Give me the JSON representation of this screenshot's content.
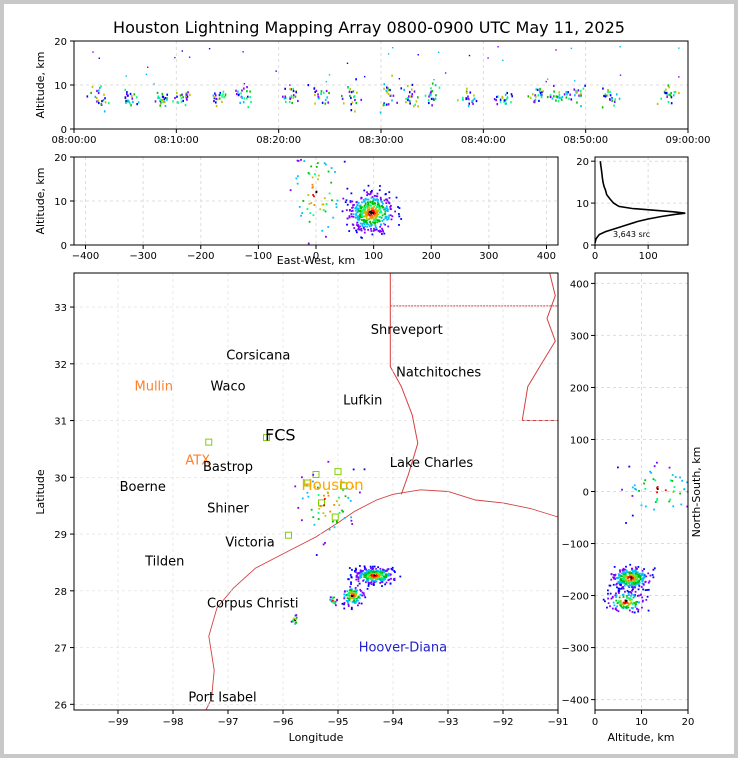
{
  "title": "Houston Lightning Mapping Array 0800-0900 UTC May 11, 2025",
  "colors": {
    "frame": "#c8c8c8",
    "grid": "#dddddd",
    "border": "#d44040",
    "county": "#c8c8c8",
    "coast": "#d44040",
    "city_label": "#000000",
    "station": "#ff7f2a",
    "sensor": "#7fd000",
    "platform": "#1f1fd0"
  },
  "chart_data": [
    {
      "id": "time_height",
      "type": "scatter",
      "ylabel": "Altitude, km",
      "ylim": [
        0,
        20
      ],
      "yticks": [
        "0",
        "10",
        "20"
      ],
      "xlim_minutes": [
        0,
        60
      ],
      "xticks": [
        "08:00:00",
        "08:10:00",
        "08:20:00",
        "08:30:00",
        "08:40:00",
        "08:50:00",
        "09:00:00"
      ],
      "clusters": [
        {
          "t": 2.5,
          "z": 7.5,
          "spread": 1.5
        },
        {
          "t": 5.5,
          "z": 7.5,
          "spread": 1.0
        },
        {
          "t": 8.5,
          "z": 7.0,
          "spread": 1.0
        },
        {
          "t": 10.5,
          "z": 7.2,
          "spread": 0.8
        },
        {
          "t": 14.0,
          "z": 7.5,
          "spread": 1.0
        },
        {
          "t": 16.5,
          "z": 7.8,
          "spread": 1.0
        },
        {
          "t": 21.0,
          "z": 7.5,
          "spread": 1.2
        },
        {
          "t": 24.0,
          "z": 8.0,
          "spread": 1.5
        },
        {
          "t": 27.0,
          "z": 8.0,
          "spread": 1.5
        },
        {
          "t": 30.5,
          "z": 8.0,
          "spread": 1.5
        },
        {
          "t": 33.0,
          "z": 7.5,
          "spread": 1.2
        },
        {
          "t": 35.0,
          "z": 7.5,
          "spread": 1.2
        },
        {
          "t": 38.5,
          "z": 7.0,
          "spread": 1.0
        },
        {
          "t": 42.0,
          "z": 7.2,
          "spread": 1.0
        },
        {
          "t": 45.0,
          "z": 7.5,
          "spread": 1.0
        },
        {
          "t": 47.0,
          "z": 7.8,
          "spread": 1.0
        },
        {
          "t": 49.0,
          "z": 8.0,
          "spread": 1.0
        },
        {
          "t": 52.5,
          "z": 7.5,
          "spread": 1.0
        },
        {
          "t": 58.0,
          "z": 8.0,
          "spread": 1.2
        }
      ]
    },
    {
      "id": "ew_height",
      "type": "scatter",
      "xlabel": "East-West, km",
      "ylabel": "Altitude, km",
      "xlim": [
        -420,
        420
      ],
      "ylim": [
        0,
        20
      ],
      "xticks": [
        "−400",
        "−300",
        "−200",
        "−100",
        "0",
        "100",
        "200",
        "300",
        "400"
      ],
      "yticks": [
        "0",
        "10",
        "20"
      ],
      "clusters": [
        {
          "x": 95,
          "z": 7.5,
          "sx": 20,
          "sz": 2.2,
          "n": 420
        },
        {
          "x": 0,
          "z": 12,
          "sx": 25,
          "sz": 6,
          "n": 70
        }
      ]
    },
    {
      "id": "alt_histogram",
      "type": "line",
      "annotation": "3,643 src",
      "xlim": [
        0,
        175
      ],
      "ylim": [
        0,
        21
      ],
      "xticks": [
        "0",
        "100"
      ],
      "yticks": [
        "0",
        "10",
        "20"
      ],
      "points": [
        [
          0,
          0.5
        ],
        [
          2,
          1.5
        ],
        [
          8,
          2.5
        ],
        [
          20,
          3.2
        ],
        [
          40,
          4.0
        ],
        [
          60,
          4.8
        ],
        [
          80,
          5.6
        ],
        [
          100,
          6.2
        ],
        [
          125,
          6.8
        ],
        [
          150,
          7.3
        ],
        [
          170,
          7.6
        ],
        [
          150,
          7.9
        ],
        [
          110,
          8.3
        ],
        [
          70,
          8.7
        ],
        [
          45,
          9.2
        ],
        [
          35,
          10.0
        ],
        [
          28,
          11.0
        ],
        [
          22,
          12.0
        ],
        [
          20,
          13.0
        ],
        [
          17,
          14.0
        ],
        [
          15,
          15.0
        ],
        [
          14,
          16.0
        ],
        [
          13,
          17.0
        ],
        [
          12,
          18.0
        ],
        [
          11,
          19.0
        ],
        [
          10,
          20.0
        ]
      ]
    },
    {
      "id": "plan_view",
      "type": "scatter",
      "xlabel": "Longitude",
      "ylabel": "Latitude",
      "xlim": [
        -99.8,
        -91
      ],
      "ylim": [
        25.9,
        33.6
      ],
      "xticks": [
        "−99",
        "−98",
        "−97",
        "−96",
        "−95",
        "−94",
        "−93",
        "−92",
        "−91"
      ],
      "yticks": [
        "26",
        "27",
        "28",
        "29",
        "30",
        "31",
        "32",
        "33"
      ],
      "clusters": [
        {
          "lon": -94.35,
          "lat": 28.28,
          "slon": 0.18,
          "slat": 0.07,
          "n": 300
        },
        {
          "lon": -94.75,
          "lat": 27.93,
          "slon": 0.1,
          "slat": 0.09,
          "n": 110
        },
        {
          "lon": -95.1,
          "lat": 27.85,
          "slon": 0.04,
          "slat": 0.05,
          "n": 18
        },
        {
          "lon": -95.8,
          "lat": 27.5,
          "slon": 0.04,
          "slat": 0.05,
          "n": 18
        },
        {
          "lon": -95.2,
          "lat": 29.55,
          "slon": 0.3,
          "slat": 0.35,
          "n": 60
        }
      ]
    },
    {
      "id": "ns_height",
      "type": "scatter",
      "xlabel": "Altitude, km",
      "ylabel": "North-South, km",
      "xlim": [
        0,
        20
      ],
      "ylim": [
        -420,
        420
      ],
      "xticks": [
        "0",
        "10",
        "20"
      ],
      "yticks": [
        "−400",
        "−300",
        "−200",
        "−100",
        "0",
        "100",
        "200",
        "300",
        "400"
      ],
      "clusters": [
        {
          "z": 7.5,
          "y": -165,
          "sz": 2.0,
          "sy": 10,
          "n": 300
        },
        {
          "z": 6.5,
          "y": -210,
          "sz": 2.0,
          "sy": 10,
          "n": 130
        },
        {
          "z": 14,
          "y": 5,
          "sz": 4,
          "sy": 25,
          "n": 55
        }
      ]
    }
  ],
  "map_labels": [
    {
      "name": "Shreveport",
      "lon": -93.75,
      "lat": 32.6,
      "size": 13,
      "color": "#000000"
    },
    {
      "name": "Corsicana",
      "lon": -96.45,
      "lat": 32.15,
      "size": 13,
      "color": "#000000"
    },
    {
      "name": "Natchitoches",
      "lon": -93.17,
      "lat": 31.85,
      "size": 13,
      "color": "#000000"
    },
    {
      "name": "Mullin",
      "lon": -98.35,
      "lat": 31.6,
      "size": 13,
      "color": "#ff7f2a"
    },
    {
      "name": "Waco",
      "lon": -97.0,
      "lat": 31.6,
      "size": 13,
      "color": "#000000"
    },
    {
      "name": "Lufkin",
      "lon": -94.55,
      "lat": 31.35,
      "size": 13,
      "color": "#000000"
    },
    {
      "name": "FCS",
      "lon": -96.05,
      "lat": 30.72,
      "size": 16,
      "color": "#000000"
    },
    {
      "name": "ATX",
      "lon": -97.55,
      "lat": 30.3,
      "size": 13,
      "color": "#ff7f2a"
    },
    {
      "name": "Bastrop",
      "lon": -97.0,
      "lat": 30.18,
      "size": 13,
      "color": "#000000"
    },
    {
      "name": "Lake Charles",
      "lon": -93.3,
      "lat": 30.25,
      "size": 13,
      "color": "#000000"
    },
    {
      "name": "Boerne",
      "lon": -98.55,
      "lat": 29.83,
      "size": 13,
      "color": "#000000"
    },
    {
      "name": "Houston",
      "lon": -95.1,
      "lat": 29.85,
      "size": 15,
      "color": "#ffa500"
    },
    {
      "name": "Shiner",
      "lon": -97.0,
      "lat": 29.45,
      "size": 13,
      "color": "#000000"
    },
    {
      "name": "Victoria",
      "lon": -96.6,
      "lat": 28.85,
      "size": 13,
      "color": "#000000"
    },
    {
      "name": "Tilden",
      "lon": -98.15,
      "lat": 28.52,
      "size": 13,
      "color": "#000000"
    },
    {
      "name": "Corpus Christi",
      "lon": -96.55,
      "lat": 27.78,
      "size": 13,
      "color": "#000000"
    },
    {
      "name": "Hoover-Diana",
      "lon": -93.82,
      "lat": 27.0,
      "size": 13,
      "color": "#1f1fd0"
    },
    {
      "name": "Port Isabel",
      "lon": -97.1,
      "lat": 26.12,
      "size": 13,
      "color": "#000000"
    }
  ],
  "sensors": [
    {
      "lon": -97.35,
      "lat": 30.62
    },
    {
      "lon": -96.3,
      "lat": 30.7
    },
    {
      "lon": -95.55,
      "lat": 29.9
    },
    {
      "lon": -95.0,
      "lat": 30.1
    },
    {
      "lon": -95.3,
      "lat": 29.55
    },
    {
      "lon": -95.05,
      "lat": 29.3
    },
    {
      "lon": -95.9,
      "lat": 28.98
    },
    {
      "lon": -94.9,
      "lat": 29.85
    },
    {
      "lon": -95.4,
      "lat": 30.05
    }
  ]
}
